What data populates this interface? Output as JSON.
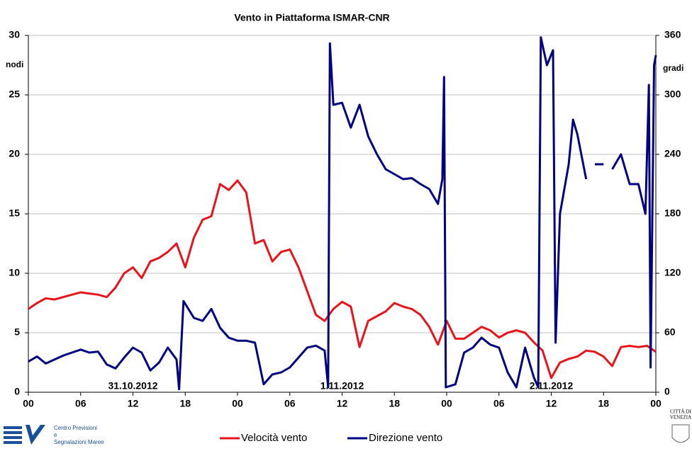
{
  "chart_data": {
    "type": "line",
    "title": "Vento in Piattaforma ISMAR-CNR",
    "ylabel": "nodi",
    "y2label": "gradi",
    "xlim": [
      0,
      72
    ],
    "xticks": [
      {
        "value": 0,
        "label": "00"
      },
      {
        "value": 6,
        "label": "06"
      },
      {
        "value": 12,
        "label": "12"
      },
      {
        "value": 18,
        "label": "18"
      },
      {
        "value": 24,
        "label": "00"
      },
      {
        "value": 30,
        "label": "06"
      },
      {
        "value": 36,
        "label": "12"
      },
      {
        "value": 42,
        "label": "18"
      },
      {
        "value": 48,
        "label": "00"
      },
      {
        "value": 54,
        "label": "06"
      },
      {
        "value": 60,
        "label": "12"
      },
      {
        "value": 66,
        "label": "18"
      },
      {
        "value": 72,
        "label": "00"
      }
    ],
    "ylim": [
      0,
      30
    ],
    "yticks": [
      0,
      5,
      10,
      15,
      20,
      25,
      30
    ],
    "y2lim": [
      0,
      360
    ],
    "y2ticks": [
      0,
      60,
      120,
      180,
      240,
      300,
      360
    ],
    "grid": true,
    "annotations": [
      {
        "text": "31.10.2012",
        "x": 12
      },
      {
        "text": "1.11.2012",
        "x": 36
      },
      {
        "text": "2.11.2012",
        "x": 60
      }
    ],
    "series": [
      {
        "name": "Velocità vento",
        "color": "#e8141c",
        "x": [
          0,
          1,
          2,
          3,
          4,
          5,
          6,
          7,
          8,
          9,
          10,
          11,
          12,
          13,
          14,
          15,
          16,
          17,
          18,
          19,
          20,
          21,
          22,
          23,
          24,
          25,
          26,
          27,
          28,
          29,
          30,
          31,
          32,
          33,
          34,
          35,
          36,
          37,
          38,
          39,
          40,
          41,
          42,
          43,
          44,
          45,
          46,
          47,
          48,
          49,
          50,
          51,
          52,
          53,
          54,
          55,
          56,
          57,
          58,
          59,
          60,
          61,
          62,
          63,
          64,
          65,
          66,
          67,
          68,
          69,
          70,
          71,
          72
        ],
        "values": [
          7,
          7.5,
          7.9,
          7.8,
          8.0,
          8.2,
          8.4,
          8.3,
          8.2,
          8.0,
          8.8,
          10.0,
          10.5,
          9.6,
          11.0,
          11.3,
          11.8,
          12.5,
          10.5,
          13.0,
          14.5,
          14.8,
          17.5,
          17.0,
          17.8,
          16.8,
          12.5,
          12.8,
          11.0,
          11.8,
          12.0,
          10.5,
          8.5,
          6.5,
          6.0,
          7.0,
          7.6,
          7.2,
          3.8,
          6.0,
          6.4,
          6.8,
          7.5,
          7.2,
          7.0,
          6.5,
          5.5,
          4.0,
          6.0,
          4.5,
          4.5,
          5.0,
          5.5,
          5.2,
          4.6,
          5.0,
          5.2,
          5.0,
          4.2,
          3.5,
          1.2,
          2.5,
          2.8,
          3.0,
          3.5,
          3.4,
          3.0,
          2.2,
          3.8,
          3.9,
          3.8,
          3.9,
          3.4
        ]
      },
      {
        "name": "Direzione vento",
        "color": "#000080",
        "axis": "y2",
        "x": [
          0,
          1,
          2,
          3,
          4,
          5,
          6,
          7,
          8,
          9,
          10,
          11,
          12,
          13,
          14,
          15,
          16,
          17,
          17.3,
          17.8,
          19,
          20,
          21,
          22,
          23,
          24,
          25,
          26,
          27,
          28,
          29,
          30,
          31,
          32,
          33,
          34,
          34.4,
          34.6,
          35,
          36,
          37,
          38,
          39,
          40,
          41,
          42,
          43,
          44,
          45,
          46,
          47,
          47.5,
          47.7,
          47.9,
          49,
          50,
          51,
          52,
          53,
          54,
          55,
          56,
          57,
          58,
          58.5,
          58.8,
          59.5,
          60.2,
          60.5,
          61,
          62,
          62.5,
          63,
          64,
          64.5,
          65,
          66,
          66.5,
          67,
          68,
          69,
          70,
          70.8,
          71.2,
          71.4,
          71.8,
          72
        ],
        "values": [
          31,
          36,
          29,
          33,
          37,
          40,
          43,
          40,
          41,
          28,
          24,
          35,
          45,
          40,
          22,
          30,
          45,
          33,
          3,
          92,
          75,
          72,
          84,
          65,
          55,
          52,
          52,
          50,
          8,
          18,
          20,
          25,
          35,
          45,
          47,
          42,
          5,
          352,
          290,
          292,
          267,
          290,
          258,
          240,
          225,
          220,
          215,
          216,
          210,
          205,
          190,
          215,
          318,
          5,
          8,
          40,
          45,
          55,
          48,
          45,
          20,
          5,
          45,
          15,
          5,
          358,
          330,
          345,
          50,
          180,
          230,
          275,
          260,
          215,
          null,
          230,
          230,
          null,
          225,
          240,
          210,
          210,
          180,
          310,
          25,
          330,
          340
        ]
      }
    ]
  },
  "footer": {
    "left": [
      "Centro Previsioni",
      "e",
      "Segnalazioni Maree"
    ],
    "right": [
      "CITTÀ DI",
      "VENEZIA"
    ]
  }
}
